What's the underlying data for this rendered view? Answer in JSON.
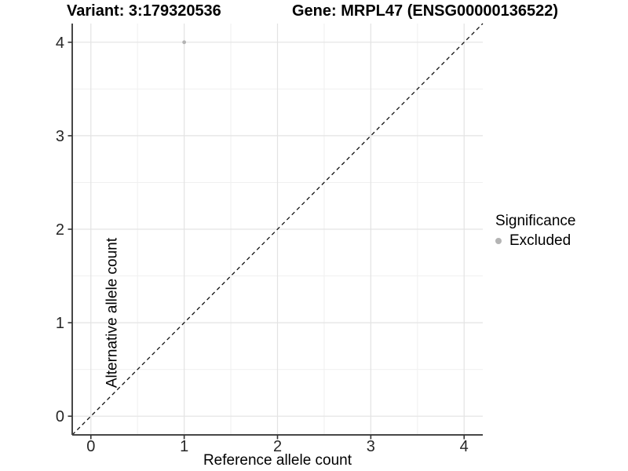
{
  "chart_data": {
    "type": "scatter",
    "title_left": "Variant: 3:179320536",
    "title_right": "Gene: MRPL47 (ENSG00000136522)",
    "xlabel": "Reference allele count",
    "ylabel": "Alternative allele count",
    "xlim": [
      -0.2,
      4.2
    ],
    "ylim": [
      -0.2,
      4.2
    ],
    "x_ticks": [
      0,
      1,
      2,
      3,
      4
    ],
    "y_ticks": [
      0,
      1,
      2,
      3,
      4
    ],
    "x_minor_ticks": [
      0.5,
      1.5,
      2.5,
      3.5
    ],
    "y_minor_ticks": [
      0.5,
      1.5,
      2.5,
      3.5
    ],
    "grid": true,
    "points": [
      {
        "x": 1,
        "y": 4,
        "series": "Excluded"
      }
    ],
    "series_colors": {
      "Excluded": "#b4b4b4"
    },
    "reference_line": {
      "type": "identity",
      "style": "dashed",
      "color": "#111111"
    },
    "legend": {
      "title": "Significance",
      "position": "right",
      "entries": [
        {
          "label": "Excluded",
          "color": "#b4b4b4"
        }
      ]
    },
    "colors": {
      "background": "#ffffff",
      "grid_major": "#e3e3e3",
      "grid_minor": "#f0f0f0",
      "axis_line": "#474747",
      "tick_mark": "#333333",
      "tick_text": "#262626"
    }
  }
}
